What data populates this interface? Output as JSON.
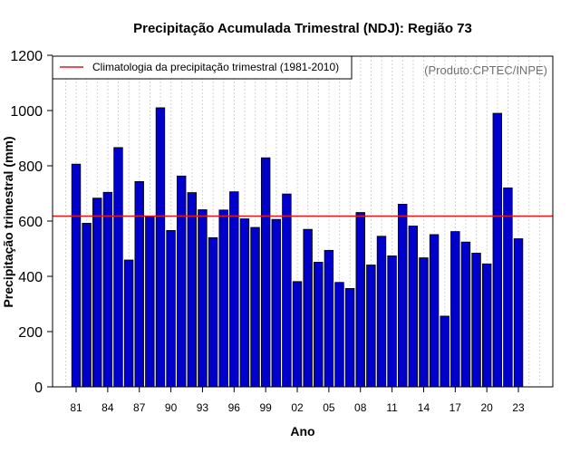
{
  "chart_data": {
    "type": "bar",
    "title": "Precipitação Acumulada Trimestral (NDJ): Região 73",
    "xlabel": "Ano",
    "ylabel": "Precipitação trimestral (mm)",
    "credit": "(Produto:CPTEC/INPE)",
    "legend": {
      "position": "top-left",
      "label": "Climatologia da precipitação trimestral (1981-2010)"
    },
    "ylim": [
      0,
      1200
    ],
    "yticks": [
      0,
      200,
      400,
      600,
      800,
      1000,
      1200
    ],
    "climatology": 618,
    "xtick_labels": [
      "81",
      "84",
      "87",
      "90",
      "93",
      "96",
      "99",
      "02",
      "05",
      "08",
      "11",
      "14",
      "17",
      "20",
      "23"
    ],
    "xtick_step": 3,
    "categories": [
      "1981",
      "1982",
      "1983",
      "1984",
      "1985",
      "1986",
      "1987",
      "1988",
      "1989",
      "1990",
      "1991",
      "1992",
      "1993",
      "1994",
      "1995",
      "1996",
      "1997",
      "1998",
      "1999",
      "2000",
      "2001",
      "2002",
      "2003",
      "2004",
      "2005",
      "2006",
      "2007",
      "2008",
      "2009",
      "2010",
      "2011",
      "2012",
      "2013",
      "2014",
      "2015",
      "2016",
      "2017",
      "2018",
      "2019",
      "2020",
      "2021",
      "2022",
      "2023"
    ],
    "values": [
      806,
      592,
      683,
      704,
      866,
      459,
      743,
      615,
      1010,
      566,
      763,
      703,
      641,
      540,
      640,
      706,
      608,
      577,
      829,
      606,
      698,
      381,
      570,
      451,
      494,
      378,
      356,
      631,
      441,
      545,
      474,
      661,
      582,
      467,
      551,
      256,
      562,
      524,
      484,
      445,
      990,
      720,
      536
    ],
    "colors": {
      "bar": "#0000cd",
      "bar_edge": "#000000",
      "climatology_line": "#e8161b",
      "grid": "#d3d3d3"
    },
    "grid": "vertical-dotted"
  }
}
